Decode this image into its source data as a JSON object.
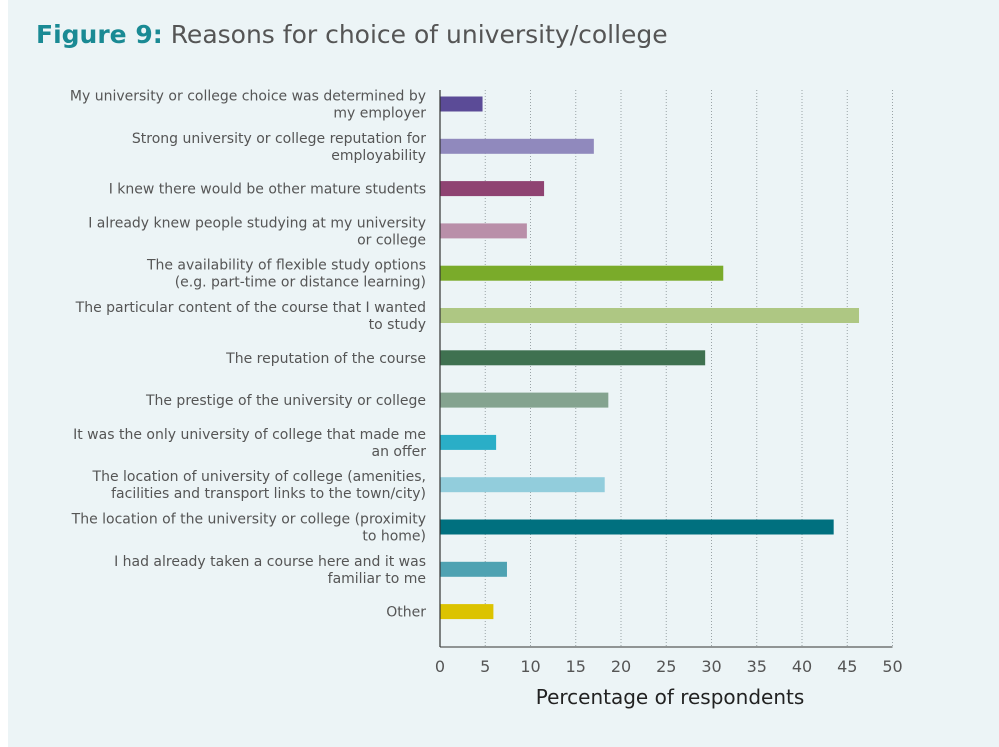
{
  "title": {
    "prefix": "Figure 9:",
    "text": "Reasons for choice of university/college"
  },
  "chart_data": {
    "type": "bar",
    "orientation": "horizontal",
    "xlabel": "Percentage of respondents",
    "ylabel": "",
    "xlim": [
      0,
      50
    ],
    "xticks": [
      0,
      5,
      10,
      15,
      20,
      25,
      30,
      35,
      40,
      45,
      50
    ],
    "grid": "vertical dotted",
    "categories": [
      [
        "My university or college choice was determined by",
        "my employer"
      ],
      [
        "Strong university or college reputation for",
        "employability"
      ],
      [
        "I knew there would be other mature students"
      ],
      [
        "I already knew people studying at my university",
        "or college"
      ],
      [
        "The availability of flexible study options",
        "(e.g. part-time or distance learning)"
      ],
      [
        "The particular content of the course that I wanted",
        "to study"
      ],
      [
        "The reputation of the course"
      ],
      [
        "The prestige of the university or college"
      ],
      [
        "It was the only university of college that made me",
        "an offer"
      ],
      [
        "The location of university of college (amenities,",
        "facilities and transport links to the town/city)"
      ],
      [
        "The location of the university or college (proximity",
        "to home)"
      ],
      [
        "I had already taken a course here and it was",
        "familiar to me"
      ],
      [
        "Other"
      ]
    ],
    "values": [
      4.7,
      17.0,
      11.5,
      9.6,
      31.3,
      46.3,
      29.3,
      18.6,
      6.2,
      18.2,
      43.5,
      7.4,
      5.9
    ],
    "colors": [
      "#5b4b97",
      "#9089bd",
      "#8f4372",
      "#b98fa9",
      "#7aab2a",
      "#aec783",
      "#3f7150",
      "#84a38f",
      "#2aaec7",
      "#92cddc",
      "#00707f",
      "#4ea2b2",
      "#dcc300"
    ]
  }
}
